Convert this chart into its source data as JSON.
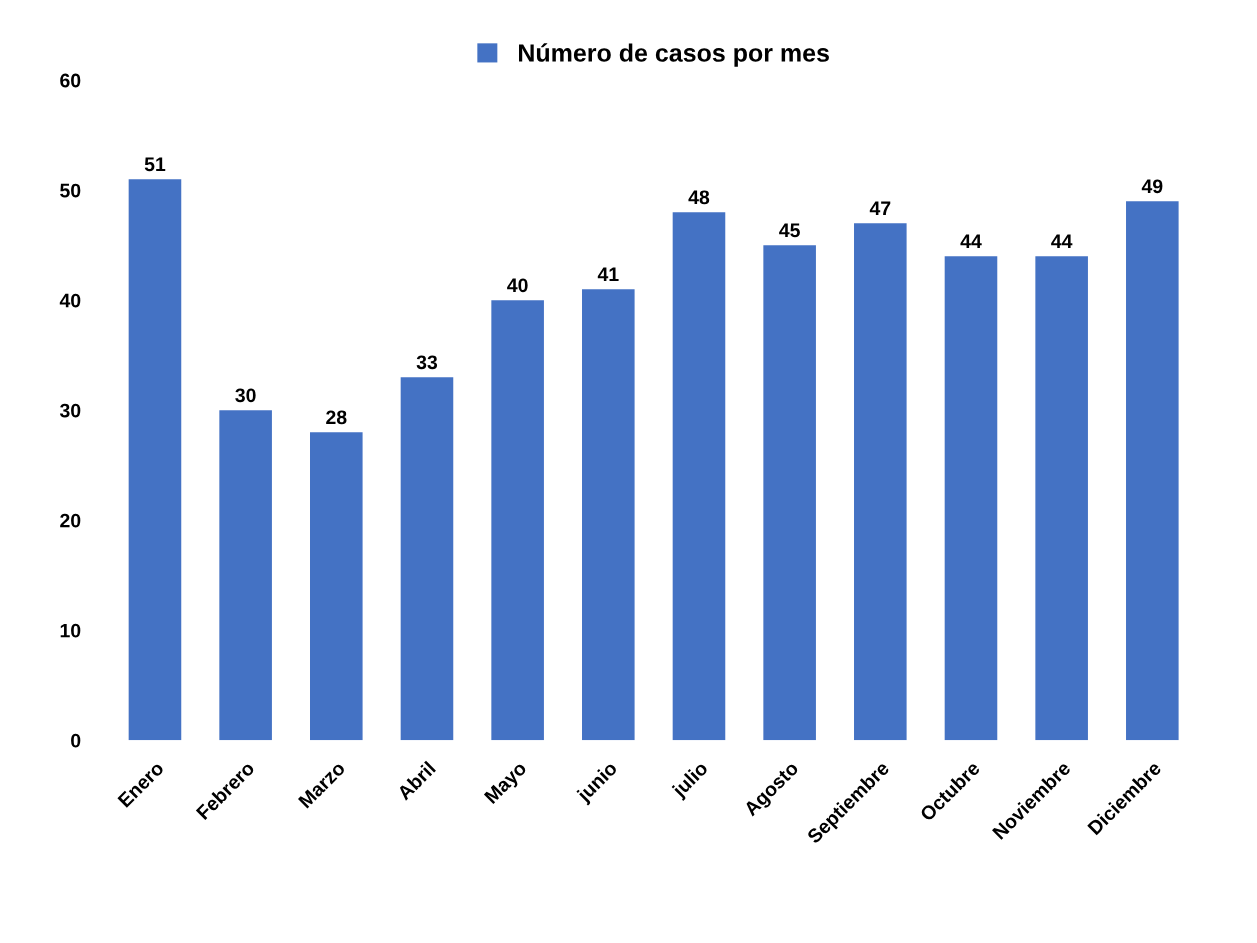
{
  "chart_data": {
    "type": "bar",
    "categories": [
      "Enero",
      "Febrero",
      "Marzo",
      "Abril",
      "Mayo",
      "junio",
      "julio",
      "Agosto",
      "Septiembre",
      "Octubre",
      "Noviembre",
      "Diciembre"
    ],
    "series": [
      {
        "name": "Número de casos por mes",
        "color": "#4472c4",
        "values": [
          51,
          30,
          28,
          33,
          40,
          41,
          48,
          45,
          47,
          44,
          44,
          49
        ]
      }
    ],
    "ylim": [
      0,
      60
    ],
    "yticks": [
      0,
      10,
      20,
      30,
      40,
      50,
      60
    ],
    "data_labels": true,
    "legend": "top",
    "grid": false
  }
}
